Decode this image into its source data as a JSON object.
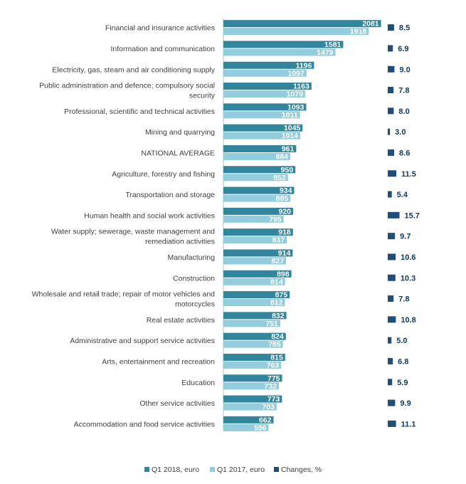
{
  "chart_data": {
    "type": "bar",
    "orientation": "horizontal",
    "title": "",
    "xlabel": "",
    "ylabel": "",
    "grid": false,
    "legend_position": "bottom",
    "colors": {
      "q1_2018": "#31859c",
      "q1_2017": "#93cddd",
      "changes": "#1f4e79",
      "axis": "#bfbfbf"
    },
    "categories": [
      [
        "Financial and insurance activities"
      ],
      [
        "Information and communication"
      ],
      [
        "Electricity, gas, steam and air conditioning supply"
      ],
      [
        "Public administration and defence; compulsory social",
        "security"
      ],
      [
        "Professional, scientific and technical activities"
      ],
      [
        "Mining and quarrying"
      ],
      [
        "NATIONAL AVERAGE"
      ],
      [
        "Agriculture, forestry and fishing"
      ],
      [
        "Transportation and storage"
      ],
      [
        "Human health and social work activities"
      ],
      [
        "Water supply; sewerage, waste management and",
        "remediation activities"
      ],
      [
        "Manufacturing"
      ],
      [
        "Construction"
      ],
      [
        "Wholesale and retail trade; repair of motor vehicles and",
        "motorcycles"
      ],
      [
        "Real estate activities"
      ],
      [
        "Administrative and support service activities"
      ],
      [
        "Arts, entertainment and recreation"
      ],
      [
        "Education"
      ],
      [
        "Other service activities"
      ],
      [
        "Accommodation and food service activities"
      ]
    ],
    "series": [
      {
        "name": "Q1 2018, euro",
        "values": [
          2081,
          1581,
          1196,
          1163,
          1093,
          1045,
          961,
          950,
          934,
          920,
          918,
          914,
          898,
          875,
          832,
          824,
          815,
          775,
          773,
          662
        ]
      },
      {
        "name": "Q1 2017, euro",
        "values": [
          1918,
          1479,
          1097,
          1079,
          1011,
          1014,
          884,
          852,
          885,
          795,
          837,
          827,
          814,
          812,
          751,
          785,
          763,
          732,
          703,
          596
        ]
      },
      {
        "name": "Changes, %",
        "values": [
          "8.5",
          "6.9",
          "9.0",
          "7.8",
          "8.0",
          "3.0",
          "8.6",
          "11.5",
          "5.4",
          "15.7",
          "9.7",
          "10.6",
          "10.3",
          "7.8",
          "10.8",
          "5.0",
          "6.8",
          "5.9",
          "9.9",
          "11.1"
        ]
      }
    ]
  }
}
